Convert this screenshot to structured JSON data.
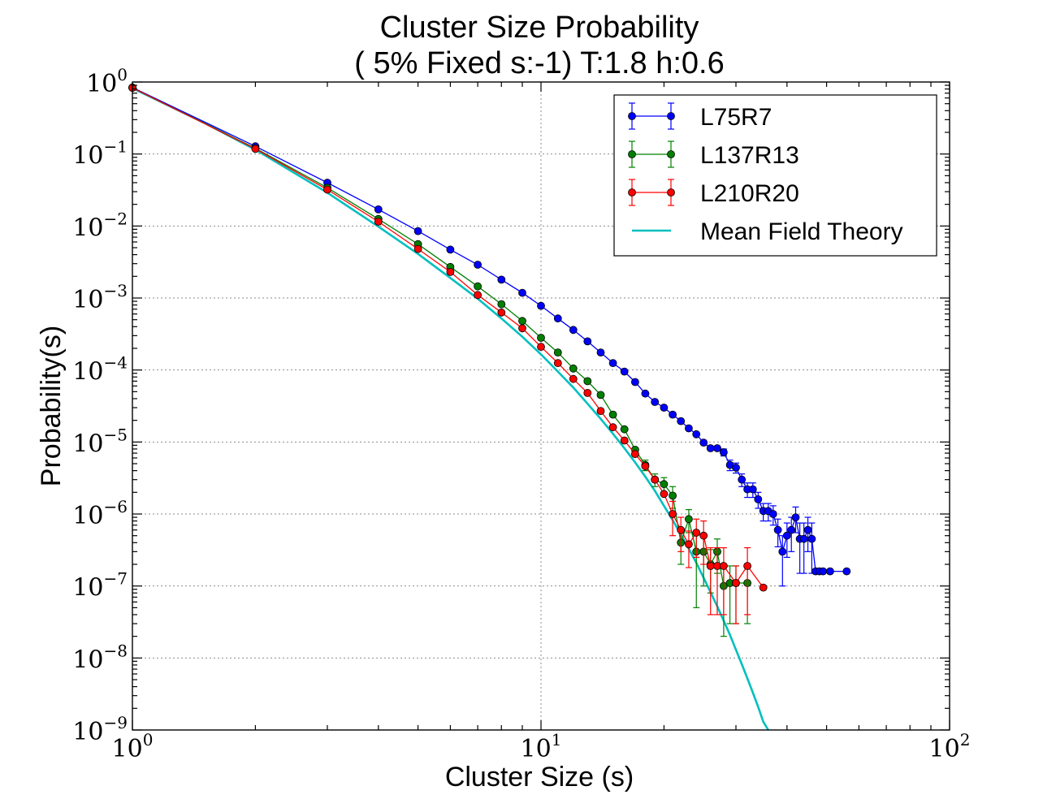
{
  "chart_data": {
    "type": "line",
    "title": "Cluster Size Probability",
    "subtitle": "( 5% Fixed s:-1) T:1.8 h:0.6",
    "xlabel": "Cluster Size (s)",
    "ylabel": "Probability(s)",
    "xscale": "log",
    "yscale": "log",
    "xlim": [
      1,
      100
    ],
    "ylim": [
      1e-09,
      1
    ],
    "x_ticks": [
      {
        "base": "10",
        "exp": "0",
        "value": 1
      },
      {
        "base": "10",
        "exp": "1",
        "value": 10
      },
      {
        "base": "10",
        "exp": "2",
        "value": 100
      }
    ],
    "y_ticks": [
      {
        "base": "10",
        "exp": "0",
        "value": 1
      },
      {
        "base": "10",
        "exp": "−1",
        "value": 0.1
      },
      {
        "base": "10",
        "exp": "−2",
        "value": 0.01
      },
      {
        "base": "10",
        "exp": "−3",
        "value": 0.001
      },
      {
        "base": "10",
        "exp": "−4",
        "value": 0.0001
      },
      {
        "base": "10",
        "exp": "−5",
        "value": 1e-05
      },
      {
        "base": "10",
        "exp": "−6",
        "value": 1e-06
      },
      {
        "base": "10",
        "exp": "−7",
        "value": 1e-07
      },
      {
        "base": "10",
        "exp": "−8",
        "value": 1e-08
      },
      {
        "base": "10",
        "exp": "−9",
        "value": 1e-09
      }
    ],
    "grid": true,
    "legend_position": "top-right",
    "series": [
      {
        "name": "L75R7",
        "color": "#0000ff",
        "marker": "circle",
        "errorbars": true,
        "x": [
          1,
          2,
          3,
          4,
          5,
          6,
          7,
          8,
          9,
          10,
          11,
          12,
          13,
          14,
          15,
          16,
          17,
          18,
          19,
          20,
          21,
          22,
          23,
          24,
          25,
          26,
          27,
          28,
          29,
          30,
          31,
          32,
          33,
          34,
          35,
          36,
          37,
          38,
          39,
          40,
          41,
          42,
          43,
          44,
          45,
          46,
          47,
          48,
          49,
          51,
          56
        ],
        "y": [
          0.84,
          0.128,
          0.04,
          0.017,
          0.0085,
          0.0047,
          0.0029,
          0.0018,
          0.00118,
          0.00078,
          0.00052,
          0.00036,
          0.00025,
          0.000175,
          0.000125,
          9.5e-05,
          6.8e-05,
          4.7e-05,
          3.6e-05,
          3e-05,
          2.4e-05,
          1.95e-05,
          1.55e-05,
          1.28e-05,
          9.8e-06,
          8.2e-06,
          8.2e-06,
          7.2e-06,
          4.8e-06,
          4.4e-06,
          3e-06,
          2.2e-06,
          2.2e-06,
          1.6e-06,
          1.1e-06,
          1.1e-06,
          1e-06,
          6e-07,
          3e-07,
          5e-07,
          6e-07,
          9e-07,
          4.5e-07,
          4.5e-07,
          6e-07,
          4.5e-07,
          1.6e-07,
          1.6e-07,
          1.6e-07,
          1.6e-07,
          1.6e-07
        ],
        "yerr": [
          0,
          0,
          0,
          0,
          0,
          0,
          0,
          0,
          0,
          0,
          0,
          0,
          0,
          0,
          0,
          0,
          0,
          0,
          0,
          0,
          0,
          0,
          0,
          0,
          0,
          0,
          0,
          8e-07,
          8e-07,
          7e-07,
          6e-07,
          5e-07,
          5e-07,
          4e-07,
          3e-07,
          3e-07,
          3e-07,
          2.5e-07,
          2e-07,
          2.5e-07,
          3e-07,
          3.5e-07,
          3e-07,
          3e-07,
          3e-07,
          3e-07,
          0,
          0,
          0,
          0,
          0
        ]
      },
      {
        "name": "L137R13",
        "color": "#008000",
        "marker": "circle",
        "errorbars": true,
        "x": [
          1,
          2,
          3,
          4,
          5,
          6,
          7,
          8,
          9,
          10,
          11,
          12,
          13,
          14,
          15,
          16,
          17,
          18,
          19,
          20,
          21,
          22,
          23,
          24,
          25,
          26,
          27,
          28,
          29,
          30,
          32
        ],
        "y": [
          0.83,
          0.12,
          0.034,
          0.0125,
          0.0056,
          0.0027,
          0.00145,
          0.00082,
          0.00048,
          0.00028,
          0.000175,
          0.000105,
          7e-05,
          4.5e-05,
          2.4e-05,
          1.5e-05,
          7.8e-06,
          4.8e-06,
          3e-06,
          2.6e-06,
          1.8e-06,
          4e-07,
          8.5e-07,
          3e-07,
          3e-07,
          2e-07,
          3e-07,
          1e-07,
          1.1e-07,
          1.1e-07,
          1.1e-07
        ],
        "yerr": [
          0,
          0,
          0,
          0,
          0,
          0,
          0,
          0,
          0,
          0,
          0,
          0,
          0,
          0,
          0,
          0,
          0,
          8e-07,
          6e-07,
          6e-07,
          6e-07,
          2e-07,
          3e-07,
          2.5e-07,
          2e-07,
          1.2e-07,
          1.5e-07,
          8e-08,
          8e-08,
          8e-08,
          8e-08
        ]
      },
      {
        "name": "L210R20",
        "color": "#ff0000",
        "marker": "circle",
        "errorbars": true,
        "x": [
          1,
          2,
          3,
          4,
          5,
          6,
          7,
          8,
          9,
          10,
          11,
          12,
          13,
          14,
          15,
          16,
          17,
          18,
          19,
          20,
          21,
          22,
          23,
          24,
          25,
          26,
          27,
          28,
          30,
          32,
          35
        ],
        "y": [
          0.83,
          0.118,
          0.032,
          0.0115,
          0.0048,
          0.0023,
          0.0011,
          0.00063,
          0.00038,
          0.00021,
          0.000125,
          7.5e-05,
          4.8e-05,
          2.7e-05,
          1.6e-05,
          1.05e-05,
          6.8e-06,
          4.6e-06,
          3e-06,
          1.9e-06,
          1e-06,
          6e-07,
          3.8e-07,
          5.5e-07,
          5e-07,
          1.9e-07,
          1.9e-07,
          1.9e-07,
          1.1e-07,
          1.9e-07,
          9.5e-08
        ],
        "yerr": [
          0,
          0,
          0,
          0,
          0,
          0,
          0,
          0,
          0,
          0,
          0,
          0,
          0,
          0,
          0,
          0,
          0,
          0,
          0,
          0,
          5e-07,
          3e-07,
          2e-07,
          3e-07,
          3e-07,
          1.5e-07,
          1.5e-07,
          1.5e-07,
          8e-08,
          1.5e-07,
          0
        ]
      },
      {
        "name": "Mean Field Theory",
        "color": "#00bfbf",
        "marker": "none",
        "errorbars": false,
        "x": [
          1,
          1.5,
          2,
          3,
          4,
          5,
          6,
          7,
          8,
          9,
          10,
          11,
          12,
          13,
          14,
          15,
          16,
          17,
          18,
          19,
          20,
          21,
          22,
          23,
          24,
          25,
          26,
          27,
          28,
          29,
          30,
          31,
          32,
          33,
          34,
          35,
          36
        ],
        "y": [
          0.82,
          0.27,
          0.115,
          0.029,
          0.0098,
          0.0041,
          0.0019,
          0.00098,
          0.00052,
          0.00029,
          0.000165,
          9.5e-05,
          5.7e-05,
          3.4e-05,
          2.1e-05,
          1.3e-05,
          8.2e-06,
          5.2e-06,
          3.3e-06,
          2.1e-06,
          1.3e-06,
          8.2e-07,
          5.2e-07,
          3.3e-07,
          2.1e-07,
          1.3e-07,
          8.2e-08,
          5.2e-08,
          3.3e-08,
          2.1e-08,
          1.3e-08,
          8.2e-09,
          5.2e-09,
          3.3e-09,
          2.1e-09,
          1.3e-09,
          1e-09
        ]
      }
    ]
  }
}
